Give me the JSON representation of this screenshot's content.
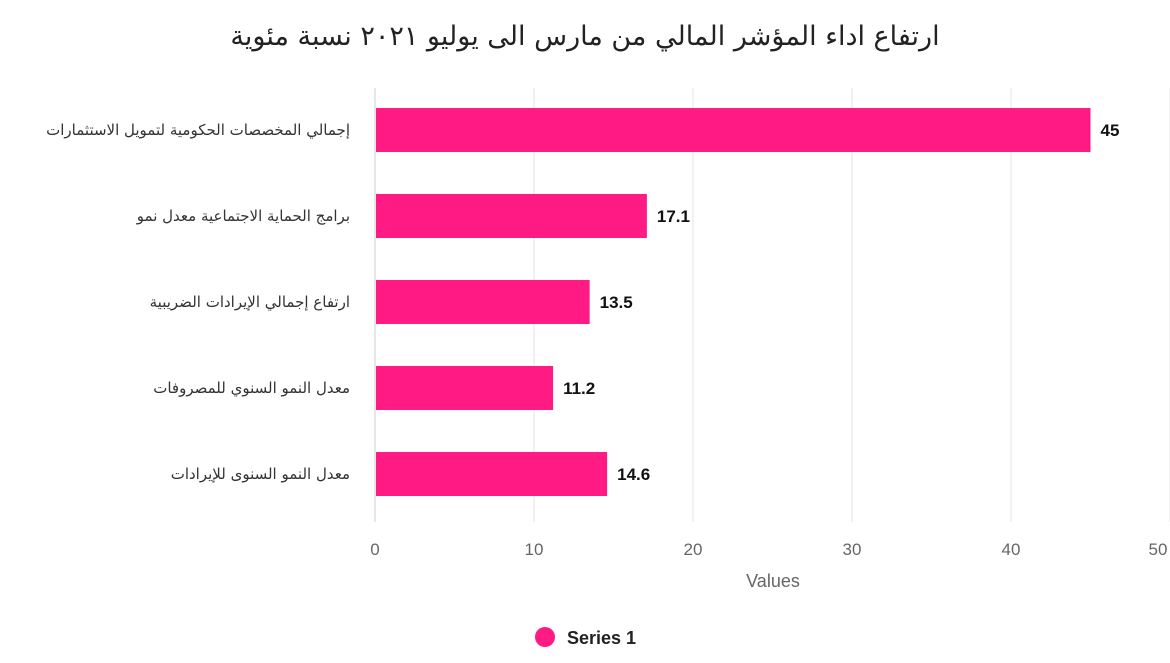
{
  "chart_data": {
    "type": "bar",
    "orientation": "horizontal",
    "title": "ارتفاع اداء المؤشر المالي من مارس الى يوليو ٢٠٢١ نسبة مئوية",
    "categories": [
      "إجمالي المخصصات الحكومية لتمويل الاستثمارات",
      "برامج الحماية الاجتماعية معدل نمو",
      "ارتفاع إجمالي الإيرادات الضريبية",
      "معدل النمو السنوي للمصروفات",
      "معدل النمو السنوى للإيرادات"
    ],
    "series": [
      {
        "name": "Series 1",
        "values": [
          45,
          17.1,
          13.5,
          11.2,
          14.6
        ],
        "labels": [
          "45",
          "17.1",
          "13.5",
          "11.2",
          "14.6"
        ],
        "color": "#ff1a84"
      }
    ],
    "xlabel": "Values",
    "xlim": [
      0,
      50
    ],
    "xticks": [
      "0",
      "10",
      "20",
      "30",
      "40",
      "50"
    ],
    "xtick_values": [
      0,
      10,
      20,
      30,
      40,
      50
    ],
    "grid": true,
    "legend_position": "bottom-center",
    "colors": {
      "bar": "#ff1a84",
      "grid": "#e3e3e3"
    }
  }
}
